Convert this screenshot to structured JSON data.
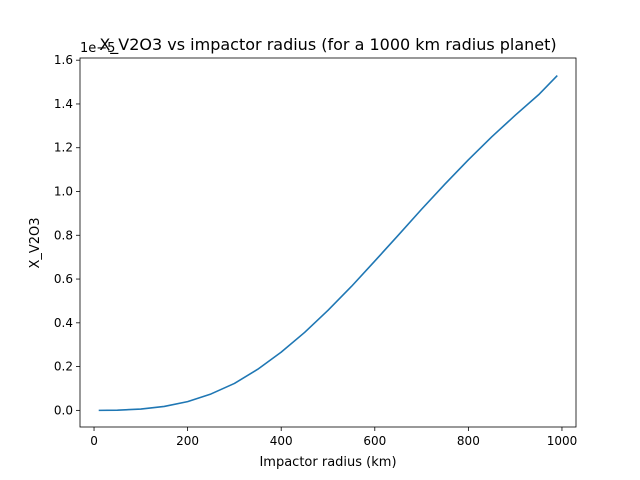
{
  "chart_data": {
    "type": "line",
    "title": "X_V2O3 vs impactor radius (for a 1000 km radius planet)",
    "xlabel": "Impactor radius (km)",
    "ylabel": "X_V2O3",
    "offset_label": "1e−5",
    "xlim": [
      -30,
      1030
    ],
    "ylim": [
      -0.076,
      1.61
    ],
    "xticks": [
      0,
      200,
      400,
      600,
      800,
      1000
    ],
    "yticks": [
      0.0,
      0.2,
      0.4,
      0.6,
      0.8,
      1.0,
      1.2,
      1.4,
      1.6
    ],
    "xticklabels": [
      "0",
      "200",
      "400",
      "600",
      "800",
      "1000"
    ],
    "yticklabels": [
      "0.0",
      "0.2",
      "0.4",
      "0.6",
      "0.8",
      "1.0",
      "1.2",
      "1.4",
      "1.6"
    ],
    "grid": false,
    "series": [
      {
        "color": "#1f77b4",
        "x": [
          10,
          50,
          100,
          150,
          200,
          250,
          300,
          350,
          400,
          450,
          500,
          550,
          600,
          650,
          700,
          750,
          800,
          850,
          900,
          950,
          990
        ],
        "y": [
          0.0,
          0.001,
          0.006,
          0.018,
          0.04,
          0.075,
          0.123,
          0.188,
          0.266,
          0.356,
          0.457,
          0.566,
          0.682,
          0.8,
          0.919,
          1.034,
          1.145,
          1.25,
          1.348,
          1.442,
          1.53
        ]
      }
    ]
  }
}
